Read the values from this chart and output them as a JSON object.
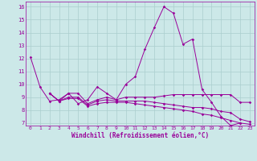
{
  "xlabel": "Windchill (Refroidissement éolien,°C)",
  "background_color": "#cce8e8",
  "line_color": "#990099",
  "grid_color": "#aacece",
  "xlim": [
    -0.5,
    23.5
  ],
  "ylim": [
    6.8,
    16.4
  ],
  "yticks": [
    7,
    8,
    9,
    10,
    11,
    12,
    13,
    14,
    15,
    16
  ],
  "xticks": [
    0,
    1,
    2,
    3,
    4,
    5,
    6,
    7,
    8,
    9,
    10,
    11,
    12,
    13,
    14,
    15,
    16,
    17,
    18,
    19,
    20,
    21,
    22,
    23
  ],
  "lines": [
    {
      "y": [
        12.1,
        9.8,
        8.7,
        8.8,
        9.3,
        8.5,
        8.8,
        9.8,
        9.3,
        8.8,
        10.0,
        10.6,
        12.7,
        14.4,
        16.0,
        15.5,
        13.1,
        13.5,
        9.6,
        8.6,
        7.5,
        6.8,
        7.0
      ],
      "x_start": 0
    },
    {
      "y": [
        9.3,
        8.7,
        9.3,
        9.3,
        8.5,
        8.8,
        9.0,
        8.8,
        9.0,
        9.0,
        9.0,
        9.0,
        9.1,
        9.2,
        9.2,
        9.2,
        9.2,
        9.2,
        9.2,
        9.2,
        8.6,
        8.6
      ],
      "x_start": 2
    },
    {
      "y": [
        9.3,
        8.7,
        9.0,
        9.0,
        8.4,
        8.7,
        8.8,
        8.7,
        8.7,
        8.7,
        8.7,
        8.6,
        8.5,
        8.4,
        8.3,
        8.2,
        8.2,
        8.1,
        7.9,
        7.8,
        7.3,
        7.1
      ],
      "x_start": 2
    },
    {
      "y": [
        9.3,
        8.7,
        8.9,
        8.9,
        8.3,
        8.5,
        8.6,
        8.6,
        8.6,
        8.5,
        8.4,
        8.3,
        8.2,
        8.1,
        8.0,
        7.9,
        7.7,
        7.6,
        7.4,
        7.2,
        7.0,
        6.9
      ],
      "x_start": 2
    }
  ]
}
